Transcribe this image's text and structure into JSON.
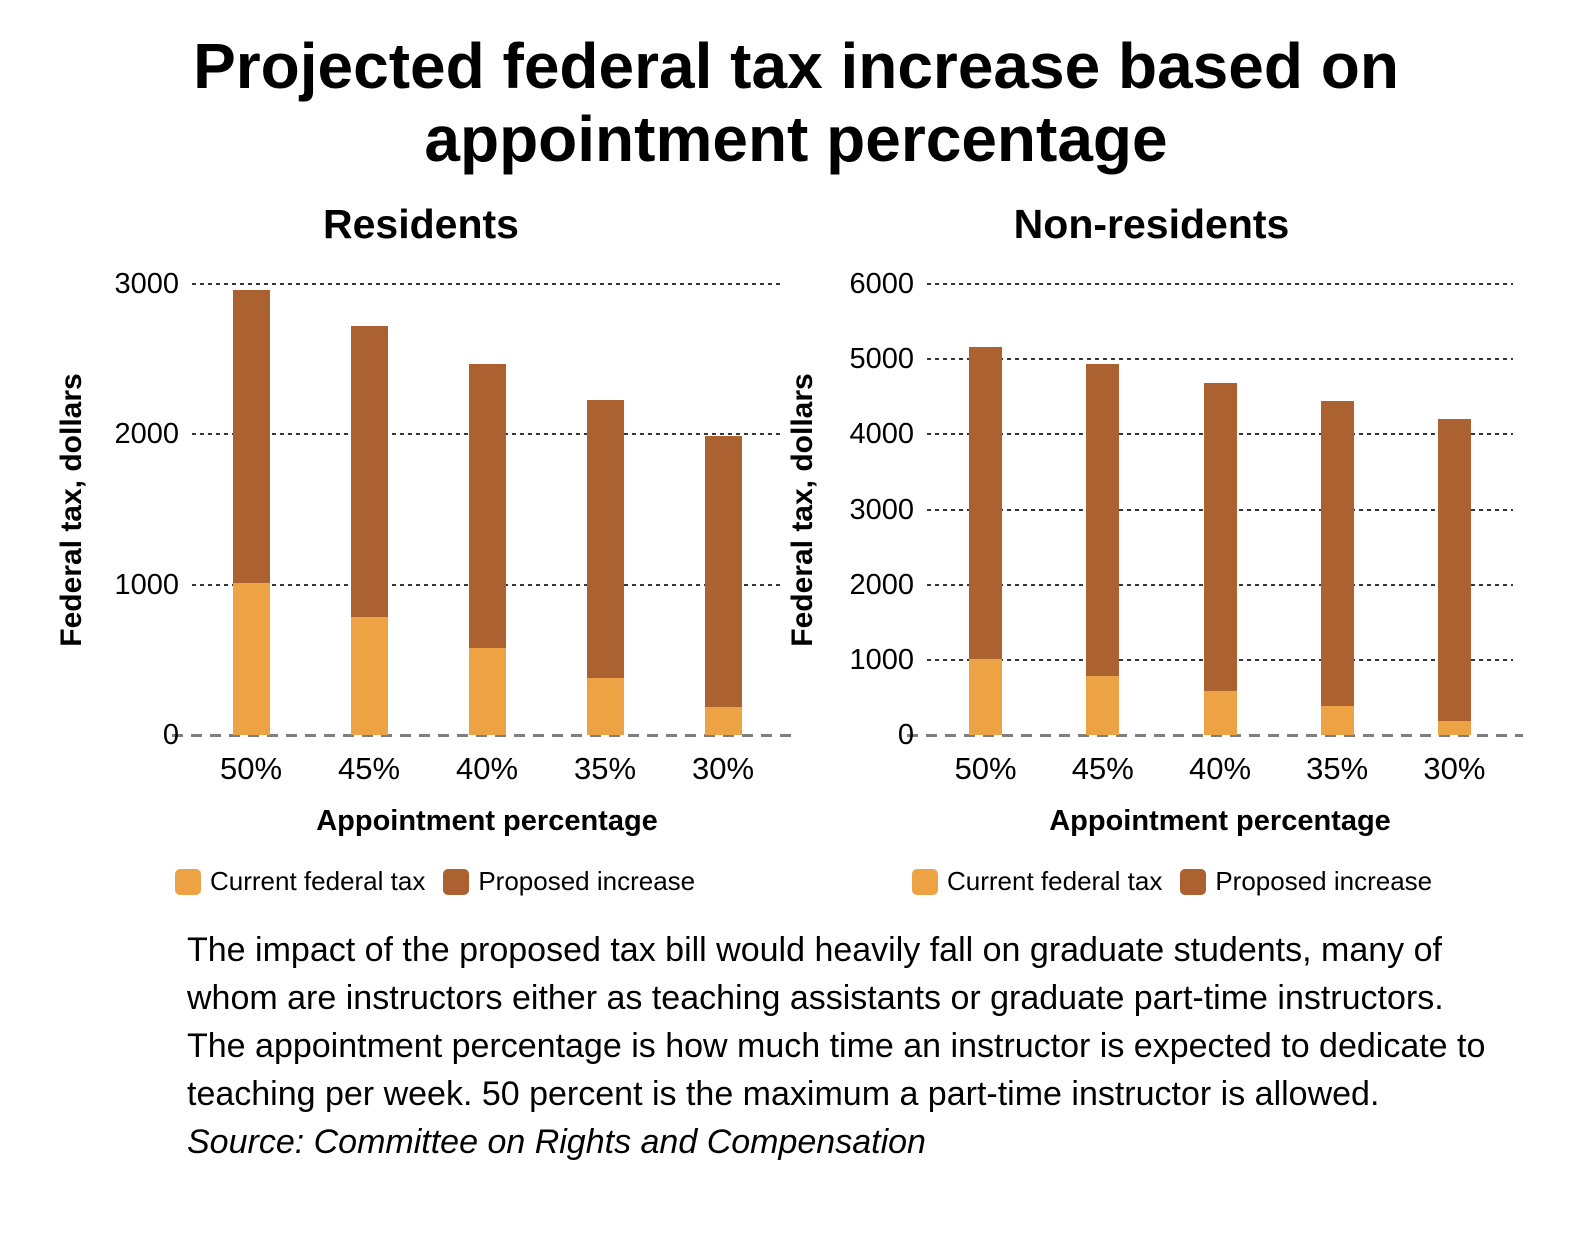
{
  "page": {
    "title": "Projected federal tax increase based on appointment percentage",
    "caption": "The impact of the proposed tax bill would heavily fall on graduate students, many of whom are instructors either as teaching assistants or graduate part-time instructors. The appointment percentage is how much time an instructor is expected to dedicate to teaching per week. 50 percent is the maximum a part-time instructor is allowed.",
    "source": "Source: Committee on Rights and Compensation"
  },
  "colors": {
    "current_federal_tax": "#EDA344",
    "proposed_increase": "#AC6130",
    "gridline": "#383838",
    "zero_line": "#7f7f7f",
    "text": "#000000",
    "background": "#ffffff"
  },
  "chart_data": [
    {
      "type": "bar",
      "stacked": true,
      "title": "Residents",
      "categories": [
        "50%",
        "45%",
        "40%",
        "35%",
        "30%"
      ],
      "series": [
        {
          "name": "Current federal tax",
          "values": [
            1010,
            785,
            580,
            380,
            185
          ]
        },
        {
          "name": "Proposed increase",
          "values": [
            1950,
            1935,
            1890,
            1850,
            1805
          ]
        }
      ],
      "totals": [
        2960,
        2720,
        2470,
        2230,
        1990
      ],
      "xlabel": "Appointment percentage",
      "ylabel": "Federal tax, dollars",
      "ylim": [
        0,
        3000
      ],
      "yticks": [
        0,
        1000,
        2000,
        3000
      ],
      "grid": "horizontal-dashed",
      "legend_position": "bottom-left"
    },
    {
      "type": "bar",
      "stacked": true,
      "title": "Non-residents",
      "categories": [
        "50%",
        "45%",
        "40%",
        "35%",
        "30%"
      ],
      "series": [
        {
          "name": "Current federal tax",
          "values": [
            1010,
            785,
            580,
            380,
            185
          ]
        },
        {
          "name": "Proposed increase",
          "values": [
            4150,
            4145,
            4100,
            4060,
            4015
          ]
        }
      ],
      "totals": [
        5160,
        4930,
        4680,
        4440,
        4200
      ],
      "xlabel": "Appointment percentage",
      "ylabel": "Federal tax, dollars",
      "ylim": [
        0,
        6000
      ],
      "yticks": [
        0,
        1000,
        2000,
        3000,
        4000,
        5000,
        6000
      ],
      "grid": "horizontal-dashed",
      "legend_position": "bottom-left"
    }
  ]
}
